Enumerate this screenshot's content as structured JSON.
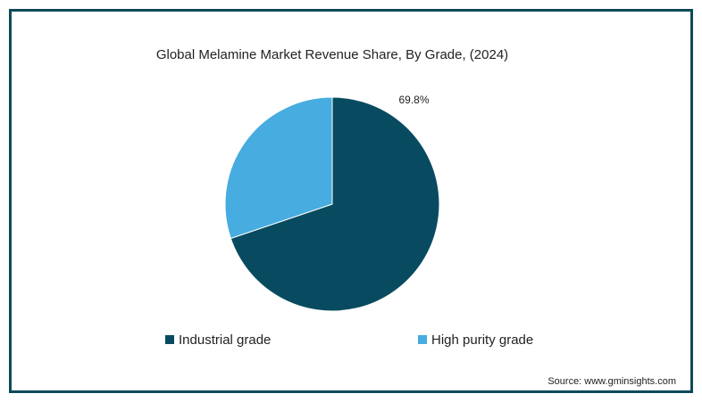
{
  "chart_data": {
    "type": "pie",
    "title": "Global Melamine Market Revenue Share, By Grade, (2024)",
    "categories": [
      "Industrial grade",
      "High purity grade"
    ],
    "values": [
      69.8,
      30.2
    ],
    "value_labels": [
      "69.8%",
      null
    ],
    "colors": [
      "#084b60",
      "#47ace0"
    ],
    "legend": "bottom",
    "source": "Source: www.gminsights.com"
  }
}
